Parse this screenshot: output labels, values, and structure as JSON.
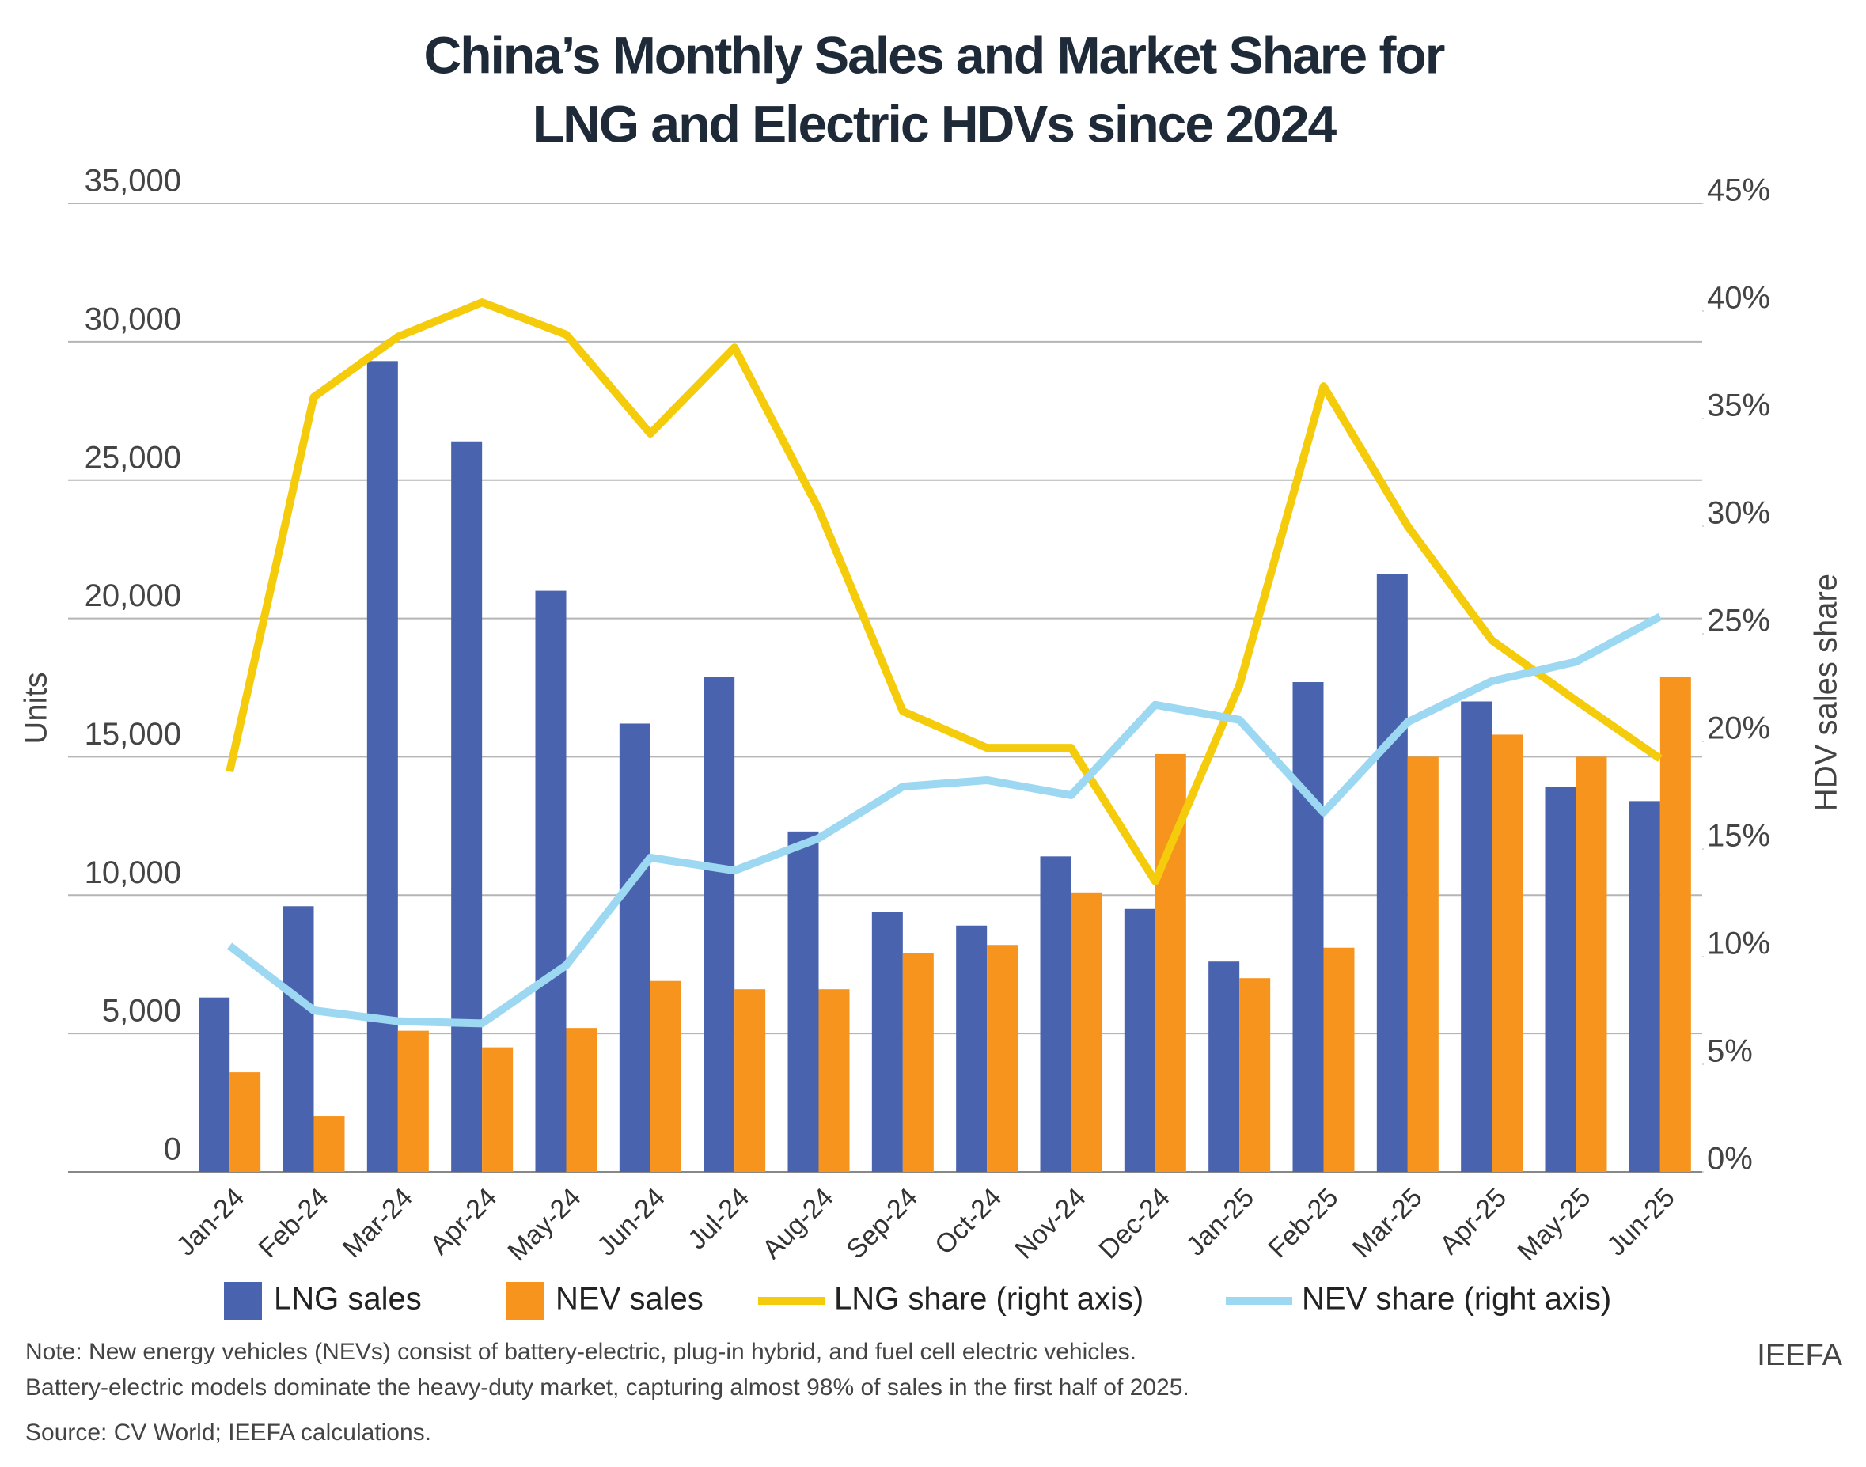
{
  "chart_data": {
    "type": "bar",
    "title": [
      "China’s Monthly Sales and Market Share for",
      "LNG and Electric HDVs since 2024"
    ],
    "y_label": "Units",
    "y2_label": "HDV sales share",
    "categories": [
      "Jan-24",
      "Feb-24",
      "Mar-24",
      "Apr-24",
      "May-24",
      "Jun-24",
      "Jul-24",
      "Aug-24",
      "Sep-24",
      "Oct-24",
      "Nov-24",
      "Dec-24",
      "Jan-25",
      "Feb-25",
      "Mar-25",
      "Apr-25",
      "May-25",
      "Jun-25"
    ],
    "series": [
      {
        "name": "LNG sales",
        "type": "bar",
        "color": "#4a63ae",
        "values": [
          6300,
          9600,
          29300,
          26400,
          21000,
          16200,
          17900,
          12300,
          9400,
          8900,
          11400,
          9500,
          7600,
          17700,
          21600,
          17000,
          13900,
          13400
        ]
      },
      {
        "name": "NEV sales",
        "type": "bar",
        "color": "#f7941d",
        "values": [
          3600,
          2000,
          5100,
          4500,
          5200,
          6900,
          6600,
          6600,
          7900,
          8200,
          10100,
          15100,
          7000,
          8100,
          15000,
          15800,
          15000,
          17900
        ]
      },
      {
        "name": "LNG share (right axis)",
        "type": "line",
        "axis": "y2",
        "color": "#f5cc0c",
        "values": [
          18.6,
          36.0,
          38.8,
          40.4,
          38.9,
          34.3,
          38.3,
          30.8,
          21.4,
          19.7,
          19.7,
          13.5,
          22.6,
          36.5,
          30.0,
          24.7,
          21.9,
          19.2
        ]
      },
      {
        "name": "NEV share (right axis)",
        "type": "line",
        "axis": "y2",
        "color": "#9dd8f2",
        "values": [
          10.5,
          7.5,
          7.0,
          6.9,
          9.6,
          14.6,
          14.0,
          15.5,
          17.9,
          18.2,
          17.5,
          21.7,
          21.0,
          16.7,
          20.9,
          22.8,
          23.7,
          25.8
        ]
      }
    ],
    "ylim": [
      0,
      35000
    ],
    "yticks": [
      0,
      {
        "value": 5000,
        "label": "5,000"
      },
      {
        "value": 10000,
        "label": "10,000"
      },
      {
        "value": 15000,
        "label": "15,000"
      },
      {
        "value": 20000,
        "label": "20,000"
      },
      {
        "value": 25000,
        "label": "25,000"
      },
      {
        "value": 30000,
        "label": "30,000"
      },
      {
        "value": 35000,
        "label": "35,000"
      }
    ],
    "y2lim": [
      0,
      45
    ],
    "y2ticks": [
      {
        "value": 0,
        "label": "0%"
      },
      {
        "value": 5,
        "label": "5%"
      },
      {
        "value": 10,
        "label": "10%"
      },
      {
        "value": 15,
        "label": "15%"
      },
      {
        "value": 20,
        "label": "20%"
      },
      {
        "value": 25,
        "label": "25%"
      },
      {
        "value": 30,
        "label": "30%"
      },
      {
        "value": 35,
        "label": "35%"
      },
      {
        "value": 40,
        "label": "40%"
      },
      {
        "value": 45,
        "label": "45%"
      }
    ],
    "grid": true,
    "notes": [
      "Note: New energy vehicles (NEVs) consist of battery-electric, plug-in hybrid, and fuel cell electric vehicles.",
      "Battery-electric models dominate the heavy-duty market, capturing almost 98% of sales in the first half of 2025."
    ],
    "source": "Source: CV World; IEEFA calculations.",
    "brand": "IEEFA"
  }
}
